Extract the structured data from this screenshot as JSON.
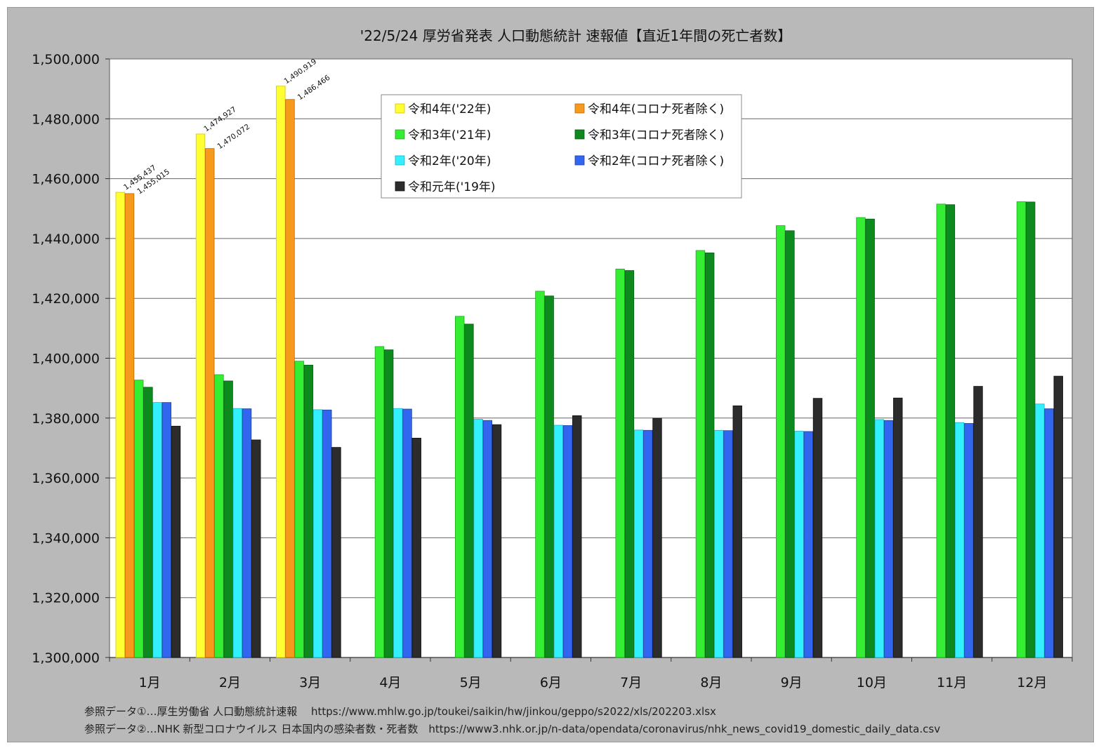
{
  "chart_data": {
    "type": "bar",
    "title": "'22/5/24 厚労省発表 人口動態統計 速報値【直近1年間の死亡者数】",
    "xlabel": "",
    "ylabel": "",
    "ylim": [
      1300000,
      1500000
    ],
    "y_ticks": [
      "1,300,000",
      "1,320,000",
      "1,340,000",
      "1,360,000",
      "1,380,000",
      "1,400,000",
      "1,420,000",
      "1,440,000",
      "1,460,000",
      "1,480,000",
      "1,500,000"
    ],
    "y_tick_values": [
      1300000,
      1320000,
      1340000,
      1360000,
      1380000,
      1400000,
      1420000,
      1440000,
      1460000,
      1480000,
      1500000
    ],
    "categories": [
      "1月",
      "2月",
      "3月",
      "4月",
      "5月",
      "6月",
      "7月",
      "8月",
      "9月",
      "10月",
      "11月",
      "12月"
    ],
    "grid": true,
    "legend_position": "top-center",
    "series": [
      {
        "name": "令和4年('22年)",
        "color": "#ffff33",
        "stroke": "#d6c400",
        "values": [
          1455437,
          1474927,
          1490919,
          null,
          null,
          null,
          null,
          null,
          null,
          null,
          null,
          null
        ]
      },
      {
        "name": "令和4年(コロナ死者除く)",
        "color": "#f59a1c",
        "stroke": "#c06a00",
        "values": [
          1455015,
          1470072,
          1486466,
          null,
          null,
          null,
          null,
          null,
          null,
          null,
          null,
          null
        ]
      },
      {
        "name": "令和3年('21年)",
        "color": "#33ee33",
        "stroke": "#1faa1f",
        "values": [
          1392700,
          1394500,
          1399000,
          1403900,
          1414000,
          1422400,
          1429800,
          1436000,
          1444300,
          1447000,
          1451500,
          1452300
        ]
      },
      {
        "name": "令和3年(コロナ死者除く)",
        "color": "#0d8a1e",
        "stroke": "#075a12",
        "values": [
          1390300,
          1392400,
          1397700,
          1402800,
          1411400,
          1420800,
          1429300,
          1435200,
          1442600,
          1446500,
          1451300,
          1452200
        ]
      },
      {
        "name": "令和2年('20年)",
        "color": "#33f0ff",
        "stroke": "#1fb0c0",
        "values": [
          1385200,
          1383200,
          1382800,
          1383200,
          1379600,
          1377600,
          1376000,
          1375900,
          1375600,
          1379500,
          1378500,
          1384700
        ]
      },
      {
        "name": "令和2年(コロナ死者除く)",
        "color": "#3366ee",
        "stroke": "#1a3fa8",
        "values": [
          1385200,
          1383100,
          1382700,
          1383000,
          1379200,
          1377500,
          1375900,
          1375800,
          1375500,
          1379200,
          1378200,
          1383100
        ]
      },
      {
        "name": "令和元年('19年)",
        "color": "#2c2c2c",
        "stroke": "#111111",
        "values": [
          1377300,
          1372700,
          1370200,
          1373300,
          1377800,
          1380800,
          1379900,
          1384100,
          1386600,
          1386700,
          1390600,
          1394000
        ]
      }
    ],
    "data_labels": [
      {
        "text": "1,455,437",
        "series": 0,
        "index": 0
      },
      {
        "text": "1,455,015",
        "series": 1,
        "index": 0
      },
      {
        "text": "1,474,927",
        "series": 0,
        "index": 1
      },
      {
        "text": "1,470,072",
        "series": 1,
        "index": 1
      },
      {
        "text": "1,490,919",
        "series": 0,
        "index": 2
      },
      {
        "text": "1,486,466",
        "series": 1,
        "index": 2
      }
    ]
  },
  "sources": [
    "参照データ①…厚生労働省 人口動態統計速報　 https://www.mhlw.go.jp/toukei/saikin/hw/jinkou/geppo/s2022/xls/202203.xlsx",
    "参照データ②…NHK 新型コロナウイルス 日本国内の感染者数・死者数　https://www3.nhk.or.jp/n-data/opendata/coronavirus/nhk_news_covid19_domestic_daily_data.csv"
  ]
}
